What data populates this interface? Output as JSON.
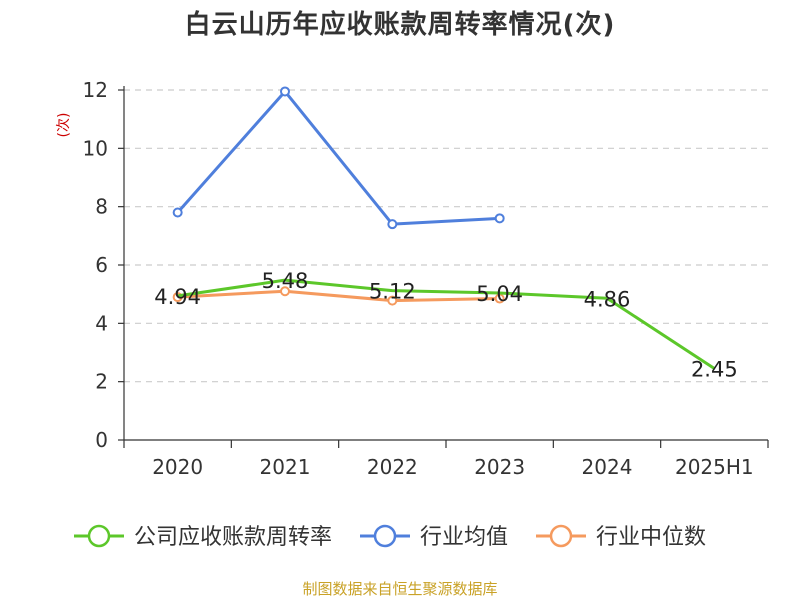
{
  "chart_data": {
    "type": "line",
    "title": "白云山历年应收账款周转率情况(次)",
    "ylabel": "(次)",
    "categories": [
      "2020",
      "2021",
      "2022",
      "2023",
      "2024",
      "2025H1"
    ],
    "ylim": [
      0,
      12
    ],
    "yticks": [
      "0",
      "2",
      "4",
      "6",
      "8",
      "10",
      "12"
    ],
    "grid": true,
    "legend_position": "bottom",
    "series": [
      {
        "name": "公司应收账款周转率",
        "color": "#5cc72a",
        "values": [
          4.94,
          5.48,
          5.12,
          5.04,
          4.86,
          2.45
        ],
        "labels": [
          "4.94",
          "5.48",
          "5.12",
          "5.04",
          "4.86",
          "2.45"
        ]
      },
      {
        "name": "行业均值",
        "color": "#4f7fdc",
        "values": [
          7.8,
          11.95,
          7.4,
          7.6,
          null,
          null
        ]
      },
      {
        "name": "行业中位数",
        "color": "#f59a5e",
        "values": [
          4.9,
          5.1,
          4.78,
          4.85,
          null,
          null
        ]
      }
    ]
  },
  "source": "制图数据来自恒生聚源数据库"
}
